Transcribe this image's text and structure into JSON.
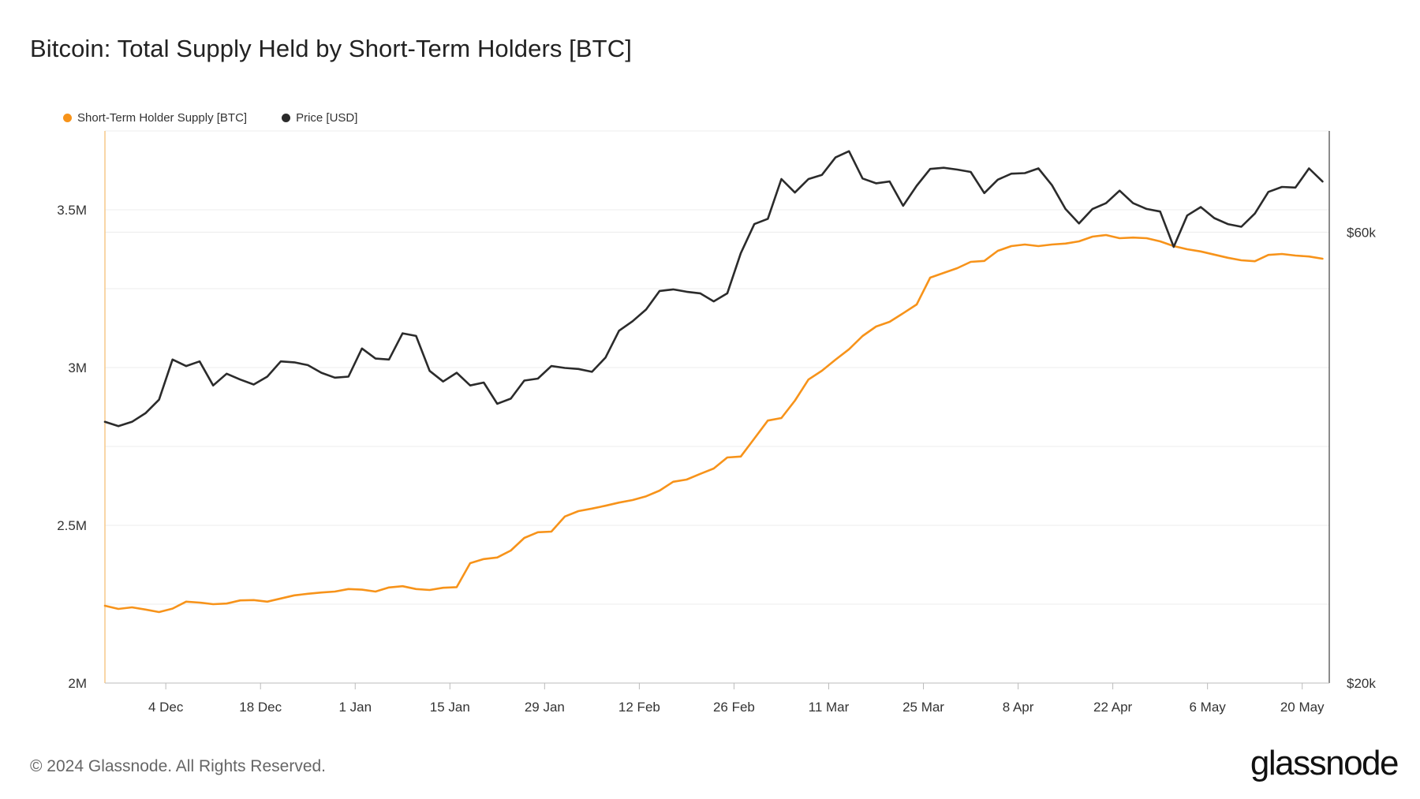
{
  "header": {
    "title": "Bitcoin: Total Supply Held by Short-Term Holders [BTC]"
  },
  "footer": {
    "copyright": "© 2024 Glassnode. All Rights Reserved.",
    "logo_text": "glassnode"
  },
  "colors": {
    "supply": "#f7931a",
    "price": "#2b2b2b",
    "grid": "#ececec",
    "axis": "#bbbbbb"
  },
  "chart_data": {
    "type": "line",
    "title": "Bitcoin: Total Supply Held by Short-Term Holders [BTC]",
    "x_range": [
      "2023-11-25",
      "2024-05-24"
    ],
    "x_ticks": [
      {
        "date": "2023-12-04",
        "label": "4 Dec"
      },
      {
        "date": "2023-12-18",
        "label": "18 Dec"
      },
      {
        "date": "2024-01-01",
        "label": "1 Jan"
      },
      {
        "date": "2024-01-15",
        "label": "15 Jan"
      },
      {
        "date": "2024-01-29",
        "label": "29 Jan"
      },
      {
        "date": "2024-02-12",
        "label": "12 Feb"
      },
      {
        "date": "2024-02-26",
        "label": "26 Feb"
      },
      {
        "date": "2024-03-11",
        "label": "11 Mar"
      },
      {
        "date": "2024-03-25",
        "label": "25 Mar"
      },
      {
        "date": "2024-04-08",
        "label": "8 Apr"
      },
      {
        "date": "2024-04-22",
        "label": "22 Apr"
      },
      {
        "date": "2024-05-06",
        "label": "6 May"
      },
      {
        "date": "2024-05-20",
        "label": "20 May"
      }
    ],
    "y_left": {
      "range": [
        2000000,
        3750000
      ],
      "ticks": [
        {
          "value": 2000000,
          "label": "2M"
        },
        {
          "value": 2500000,
          "label": "2.5M"
        },
        {
          "value": 3000000,
          "label": "3M"
        },
        {
          "value": 3500000,
          "label": "3.5M"
        }
      ]
    },
    "y_right": {
      "scale": "log",
      "range": [
        20000,
        76800
      ],
      "ticks": [
        {
          "value": 20000,
          "label": "$20k"
        },
        {
          "value": 60000,
          "label": "$60k"
        }
      ]
    },
    "grid": true,
    "legend_position": "top-left",
    "series": [
      {
        "name": "Short-Term Holder Supply [BTC]",
        "axis": "left",
        "color": "#f7931a",
        "points": [
          [
            "2023-11-25",
            2245000
          ],
          [
            "2023-11-27",
            2235000
          ],
          [
            "2023-11-29",
            2240000
          ],
          [
            "2023-12-01",
            2233000
          ],
          [
            "2023-12-03",
            2225000
          ],
          [
            "2023-12-05",
            2236000
          ],
          [
            "2023-12-07",
            2258000
          ],
          [
            "2023-12-09",
            2255000
          ],
          [
            "2023-12-11",
            2250000
          ],
          [
            "2023-12-13",
            2252000
          ],
          [
            "2023-12-15",
            2262000
          ],
          [
            "2023-12-17",
            2263000
          ],
          [
            "2023-12-19",
            2258000
          ],
          [
            "2023-12-21",
            2268000
          ],
          [
            "2023-12-23",
            2278000
          ],
          [
            "2023-12-25",
            2283000
          ],
          [
            "2023-12-27",
            2287000
          ],
          [
            "2023-12-29",
            2290000
          ],
          [
            "2023-12-31",
            2298000
          ],
          [
            "2024-01-02",
            2296000
          ],
          [
            "2024-01-04",
            2290000
          ],
          [
            "2024-01-06",
            2303000
          ],
          [
            "2024-01-08",
            2307000
          ],
          [
            "2024-01-10",
            2298000
          ],
          [
            "2024-01-12",
            2295000
          ],
          [
            "2024-01-14",
            2302000
          ],
          [
            "2024-01-16",
            2304000
          ],
          [
            "2024-01-18",
            2380000
          ],
          [
            "2024-01-20",
            2393000
          ],
          [
            "2024-01-22",
            2398000
          ],
          [
            "2024-01-24",
            2420000
          ],
          [
            "2024-01-26",
            2460000
          ],
          [
            "2024-01-28",
            2478000
          ],
          [
            "2024-01-30",
            2480000
          ],
          [
            "2024-02-01",
            2528000
          ],
          [
            "2024-02-03",
            2545000
          ],
          [
            "2024-02-05",
            2553000
          ],
          [
            "2024-02-07",
            2562000
          ],
          [
            "2024-02-09",
            2572000
          ],
          [
            "2024-02-11",
            2580000
          ],
          [
            "2024-02-13",
            2592000
          ],
          [
            "2024-02-15",
            2610000
          ],
          [
            "2024-02-17",
            2638000
          ],
          [
            "2024-02-19",
            2645000
          ],
          [
            "2024-02-21",
            2663000
          ],
          [
            "2024-02-23",
            2680000
          ],
          [
            "2024-02-25",
            2715000
          ],
          [
            "2024-02-27",
            2718000
          ],
          [
            "2024-02-29",
            2775000
          ],
          [
            "2024-03-02",
            2832000
          ],
          [
            "2024-03-04",
            2840000
          ],
          [
            "2024-03-06",
            2895000
          ],
          [
            "2024-03-08",
            2962000
          ],
          [
            "2024-03-10",
            2990000
          ],
          [
            "2024-03-12",
            3025000
          ],
          [
            "2024-03-14",
            3058000
          ],
          [
            "2024-03-16",
            3100000
          ],
          [
            "2024-03-18",
            3130000
          ],
          [
            "2024-03-20",
            3145000
          ],
          [
            "2024-03-22",
            3172000
          ],
          [
            "2024-03-24",
            3200000
          ],
          [
            "2024-03-26",
            3285000
          ],
          [
            "2024-03-28",
            3300000
          ],
          [
            "2024-03-30",
            3315000
          ],
          [
            "2024-04-01",
            3335000
          ],
          [
            "2024-04-03",
            3338000
          ],
          [
            "2024-04-05",
            3370000
          ],
          [
            "2024-04-07",
            3385000
          ],
          [
            "2024-04-09",
            3390000
          ],
          [
            "2024-04-11",
            3385000
          ],
          [
            "2024-04-13",
            3390000
          ],
          [
            "2024-04-15",
            3393000
          ],
          [
            "2024-04-17",
            3400000
          ],
          [
            "2024-04-19",
            3415000
          ],
          [
            "2024-04-21",
            3420000
          ],
          [
            "2024-04-23",
            3410000
          ],
          [
            "2024-04-25",
            3412000
          ],
          [
            "2024-04-27",
            3410000
          ],
          [
            "2024-04-29",
            3400000
          ],
          [
            "2024-05-01",
            3385000
          ],
          [
            "2024-05-03",
            3375000
          ],
          [
            "2024-05-05",
            3368000
          ],
          [
            "2024-05-07",
            3358000
          ],
          [
            "2024-05-09",
            3348000
          ],
          [
            "2024-05-11",
            3340000
          ],
          [
            "2024-05-13",
            3337000
          ],
          [
            "2024-05-15",
            3357000
          ],
          [
            "2024-05-17",
            3360000
          ],
          [
            "2024-05-19",
            3355000
          ],
          [
            "2024-05-21",
            3352000
          ],
          [
            "2024-05-23",
            3345000
          ]
        ]
      },
      {
        "name": "Price [USD]",
        "axis": "right",
        "color": "#2b2b2b",
        "points": [
          [
            "2023-11-25",
            37800
          ],
          [
            "2023-11-27",
            37400
          ],
          [
            "2023-11-29",
            37800
          ],
          [
            "2023-12-01",
            38600
          ],
          [
            "2023-12-03",
            39900
          ],
          [
            "2023-12-05",
            44000
          ],
          [
            "2023-12-07",
            43300
          ],
          [
            "2023-12-09",
            43800
          ],
          [
            "2023-12-11",
            41300
          ],
          [
            "2023-12-13",
            42500
          ],
          [
            "2023-12-15",
            41900
          ],
          [
            "2023-12-17",
            41400
          ],
          [
            "2023-12-19",
            42200
          ],
          [
            "2023-12-21",
            43800
          ],
          [
            "2023-12-23",
            43700
          ],
          [
            "2023-12-25",
            43400
          ],
          [
            "2023-12-27",
            42600
          ],
          [
            "2023-12-29",
            42100
          ],
          [
            "2023-12-31",
            42200
          ],
          [
            "2024-01-02",
            45200
          ],
          [
            "2024-01-04",
            44100
          ],
          [
            "2024-01-06",
            44000
          ],
          [
            "2024-01-08",
            46900
          ],
          [
            "2024-01-10",
            46600
          ],
          [
            "2024-01-12",
            42800
          ],
          [
            "2024-01-14",
            41700
          ],
          [
            "2024-01-16",
            42600
          ],
          [
            "2024-01-18",
            41300
          ],
          [
            "2024-01-20",
            41600
          ],
          [
            "2024-01-22",
            39500
          ],
          [
            "2024-01-24",
            40000
          ],
          [
            "2024-01-26",
            41800
          ],
          [
            "2024-01-28",
            42000
          ],
          [
            "2024-01-30",
            43300
          ],
          [
            "2024-02-01",
            43100
          ],
          [
            "2024-02-03",
            43000
          ],
          [
            "2024-02-05",
            42700
          ],
          [
            "2024-02-07",
            44200
          ],
          [
            "2024-02-09",
            47200
          ],
          [
            "2024-02-11",
            48300
          ],
          [
            "2024-02-13",
            49700
          ],
          [
            "2024-02-15",
            52000
          ],
          [
            "2024-02-17",
            52200
          ],
          [
            "2024-02-19",
            51900
          ],
          [
            "2024-02-21",
            51700
          ],
          [
            "2024-02-23",
            50700
          ],
          [
            "2024-02-25",
            51700
          ],
          [
            "2024-02-27",
            57000
          ],
          [
            "2024-02-29",
            61200
          ],
          [
            "2024-03-02",
            62000
          ],
          [
            "2024-03-04",
            68300
          ],
          [
            "2024-03-06",
            66100
          ],
          [
            "2024-03-08",
            68300
          ],
          [
            "2024-03-10",
            69000
          ],
          [
            "2024-03-12",
            72000
          ],
          [
            "2024-03-14",
            73100
          ],
          [
            "2024-03-16",
            68400
          ],
          [
            "2024-03-18",
            67600
          ],
          [
            "2024-03-20",
            67900
          ],
          [
            "2024-03-22",
            64000
          ],
          [
            "2024-03-24",
            67200
          ],
          [
            "2024-03-26",
            70000
          ],
          [
            "2024-03-28",
            70200
          ],
          [
            "2024-03-30",
            69900
          ],
          [
            "2024-04-01",
            69500
          ],
          [
            "2024-04-03",
            66000
          ],
          [
            "2024-04-05",
            68200
          ],
          [
            "2024-04-07",
            69200
          ],
          [
            "2024-04-09",
            69300
          ],
          [
            "2024-04-11",
            70100
          ],
          [
            "2024-04-13",
            67300
          ],
          [
            "2024-04-15",
            63500
          ],
          [
            "2024-04-17",
            61300
          ],
          [
            "2024-04-19",
            63500
          ],
          [
            "2024-04-21",
            64400
          ],
          [
            "2024-04-23",
            66400
          ],
          [
            "2024-04-25",
            64400
          ],
          [
            "2024-04-27",
            63500
          ],
          [
            "2024-04-29",
            63100
          ],
          [
            "2024-05-01",
            57900
          ],
          [
            "2024-05-03",
            62500
          ],
          [
            "2024-05-05",
            63800
          ],
          [
            "2024-05-07",
            62100
          ],
          [
            "2024-05-09",
            61200
          ],
          [
            "2024-05-11",
            60800
          ],
          [
            "2024-05-13",
            62800
          ],
          [
            "2024-05-15",
            66200
          ],
          [
            "2024-05-17",
            67000
          ],
          [
            "2024-05-19",
            66900
          ],
          [
            "2024-05-21",
            70100
          ],
          [
            "2024-05-23",
            67900
          ]
        ]
      }
    ]
  }
}
